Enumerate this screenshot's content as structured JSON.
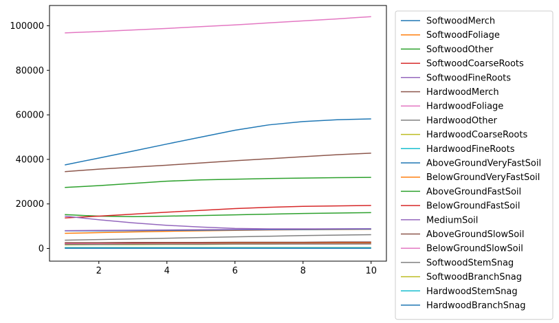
{
  "chart_data": {
    "type": "line",
    "title": "",
    "xlabel": "",
    "ylabel": "",
    "xlim": [
      0.55,
      10.45
    ],
    "ylim": [
      -5700,
      109100
    ],
    "x_ticks": [
      2,
      4,
      6,
      8,
      10
    ],
    "y_ticks": [
      0,
      20000,
      40000,
      60000,
      80000,
      100000
    ],
    "x_tick_labels": [
      "2",
      "4",
      "6",
      "8",
      "10"
    ],
    "y_tick_labels": [
      "0",
      "20000",
      "40000",
      "60000",
      "80000",
      "100000"
    ],
    "grid": false,
    "legend_placement": "outside-right",
    "x": [
      1,
      2,
      3,
      4,
      5,
      6,
      7,
      8,
      9,
      10
    ],
    "series": [
      {
        "name": "SoftwoodMerch",
        "color": "#1f77b4",
        "values": [
          37500,
          40600,
          43700,
          46900,
          50000,
          53100,
          55500,
          57000,
          57800,
          58200
        ]
      },
      {
        "name": "SoftwoodFoliage",
        "color": "#ff7f0e",
        "values": [
          6800,
          7100,
          7400,
          7700,
          7900,
          8100,
          8300,
          8400,
          8500,
          8600
        ]
      },
      {
        "name": "SoftwoodOther",
        "color": "#2ca02c",
        "values": [
          15200,
          14500,
          14300,
          14500,
          14800,
          15100,
          15400,
          15700,
          15900,
          16100
        ]
      },
      {
        "name": "SoftwoodCoarseRoots",
        "color": "#d62728",
        "values": [
          13700,
          14500,
          15400,
          16300,
          17100,
          17900,
          18500,
          18900,
          19100,
          19300
        ]
      },
      {
        "name": "SoftwoodFineRoots",
        "color": "#9467bd",
        "values": [
          14500,
          12900,
          11500,
          10400,
          9600,
          9000,
          8800,
          8800,
          8800,
          8800
        ]
      },
      {
        "name": "HardwoodMerch",
        "color": "#8c564b",
        "values": [
          34500,
          35600,
          36500,
          37400,
          38400,
          39400,
          40300,
          41200,
          42100,
          42800
        ]
      },
      {
        "name": "HardwoodFoliage",
        "color": "#e377c2",
        "values": [
          96800,
          97400,
          98100,
          98800,
          99600,
          100400,
          101300,
          102200,
          103100,
          104100
        ]
      },
      {
        "name": "HardwoodOther",
        "color": "#7f7f7f",
        "values": [
          3700,
          4000,
          4300,
          4600,
          4900,
          5200,
          5500,
          5800,
          6000,
          6200
        ]
      },
      {
        "name": "HardwoodCoarseRoots",
        "color": "#bcbd22",
        "values": [
          1600,
          1700,
          1700,
          1800,
          1800,
          1900,
          1900,
          2000,
          2000,
          2000
        ]
      },
      {
        "name": "HardwoodFineRoots",
        "color": "#17becf",
        "values": [
          200,
          200,
          200,
          200,
          200,
          200,
          200,
          200,
          200,
          200
        ]
      },
      {
        "name": "AboveGroundVeryFastSoil",
        "color": "#1f77b4",
        "values": [
          7900,
          7900,
          8000,
          8100,
          8200,
          8300,
          8400,
          8500,
          8600,
          8700
        ]
      },
      {
        "name": "BelowGroundVeryFastSoil",
        "color": "#ff7f0e",
        "values": [
          2200,
          2200,
          2300,
          2300,
          2300,
          2400,
          2400,
          2400,
          2500,
          2500
        ]
      },
      {
        "name": "AboveGroundFastSoil",
        "color": "#2ca02c",
        "values": [
          27400,
          28200,
          29200,
          30200,
          30800,
          31100,
          31400,
          31600,
          31800,
          31900
        ]
      },
      {
        "name": "BelowGroundFastSoil",
        "color": "#d62728",
        "values": [
          2400,
          2500,
          2500,
          2600,
          2600,
          2700,
          2700,
          2700,
          2800,
          2800
        ]
      },
      {
        "name": "MediumSoil",
        "color": "#9467bd",
        "values": [
          8000,
          8100,
          8200,
          8300,
          8400,
          8500,
          8600,
          8700,
          8800,
          8900
        ]
      },
      {
        "name": "AboveGroundSlowSoil",
        "color": "#8c564b",
        "values": [
          2600,
          2600,
          2700,
          2700,
          2700,
          2800,
          2800,
          2800,
          2900,
          2900
        ]
      },
      {
        "name": "BelowGroundSlowSoil",
        "color": "#e377c2",
        "values": [
          2000,
          2000,
          2000,
          2000,
          2000,
          2000,
          2000,
          2000,
          2000,
          2000
        ]
      },
      {
        "name": "SoftwoodStemSnag",
        "color": "#7f7f7f",
        "values": [
          1800,
          1800,
          1900,
          1900,
          1900,
          2000,
          2000,
          2000,
          2000,
          2100
        ]
      },
      {
        "name": "SoftwoodBranchSnag",
        "color": "#bcbd22",
        "values": [
          400,
          400,
          400,
          400,
          400,
          400,
          400,
          400,
          400,
          400
        ]
      },
      {
        "name": "HardwoodStemSnag",
        "color": "#17becf",
        "values": [
          300,
          300,
          300,
          300,
          300,
          300,
          300,
          300,
          300,
          300
        ]
      },
      {
        "name": "HardwoodBranchSnag",
        "color": "#1f77b4",
        "values": [
          100,
          100,
          100,
          100,
          100,
          100,
          100,
          100,
          100,
          100
        ]
      }
    ]
  }
}
